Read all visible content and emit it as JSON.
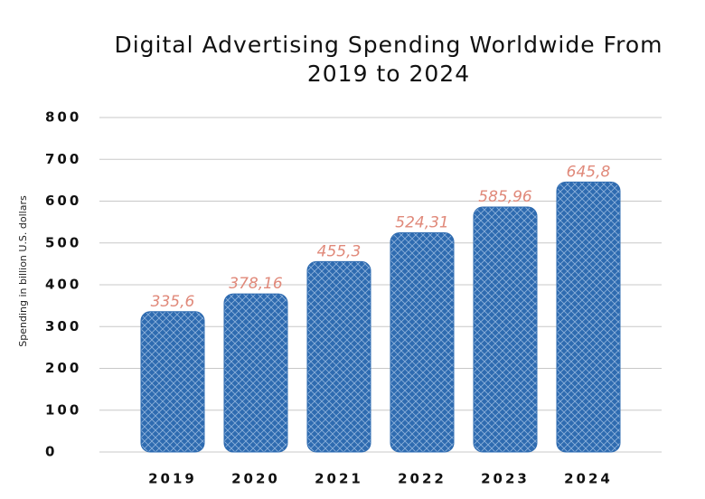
{
  "chart_data": {
    "type": "bar",
    "title": "Digital Advertising Spending Worldwide From 2019 to 2024",
    "y_label": "Spending in billion U.S. dollars",
    "categories": [
      "2019",
      "2020",
      "2021",
      "2022",
      "2023",
      "2024"
    ],
    "values": [
      335.6,
      378.16,
      455.3,
      524.31,
      585.96,
      645.8
    ],
    "value_labels": [
      "335,6",
      "378,16",
      "455,3",
      "524,31",
      "585,96",
      "645,8"
    ],
    "color": "#2e6bb0",
    "ylim": [
      0,
      800
    ],
    "yticks": [
      0,
      100,
      200,
      300,
      400,
      500,
      600,
      700,
      800
    ],
    "grid": true
  }
}
